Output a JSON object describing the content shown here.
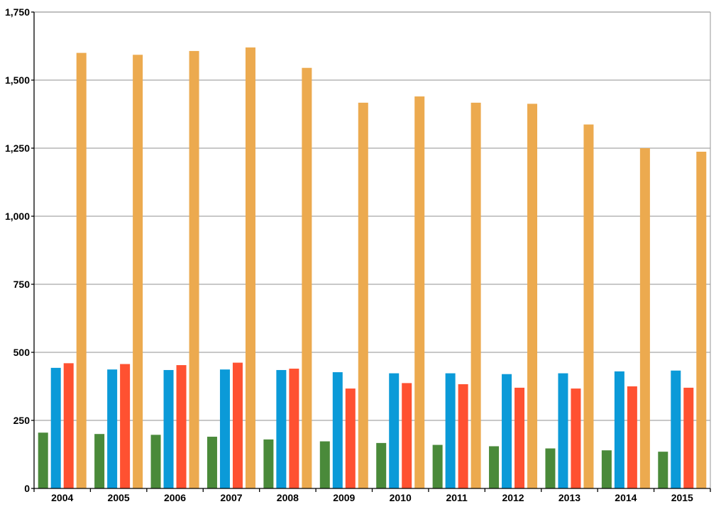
{
  "colors": {
    "series_1": "#4a8a3a",
    "series_2": "#0b9ad8",
    "series_3": "#ff5131",
    "series_4": "#ecaa4f",
    "grid": "#a6a6a6",
    "axis": "#000000",
    "background": "#ffffff"
  },
  "chart_data": {
    "type": "bar",
    "title": "",
    "xlabel": "",
    "ylabel": "",
    "categories": [
      "2004",
      "2005",
      "2006",
      "2007",
      "2008",
      "2009",
      "2010",
      "2011",
      "2012",
      "2013",
      "2014",
      "2015"
    ],
    "series": [
      {
        "color": "#4a8a3a",
        "values": [
          205,
          200,
          197,
          190,
          180,
          173,
          167,
          160,
          155,
          147,
          140,
          135
        ]
      },
      {
        "color": "#0b9ad8",
        "values": [
          443,
          437,
          435,
          437,
          435,
          427,
          423,
          423,
          420,
          423,
          430,
          433
        ]
      },
      {
        "color": "#ff5131",
        "values": [
          460,
          457,
          453,
          462,
          440,
          367,
          387,
          383,
          370,
          367,
          375,
          370
        ]
      },
      {
        "color": "#ecaa4f",
        "values": [
          1600,
          1593,
          1607,
          1620,
          1545,
          1417,
          1440,
          1417,
          1413,
          1337,
          1250,
          1237
        ]
      }
    ],
    "ylim": [
      0,
      1750
    ],
    "yticks": [
      0,
      250,
      500,
      750,
      1000,
      1250,
      1500,
      1750
    ],
    "ytick_labels": [
      "0",
      "250",
      "500",
      "750",
      "1,000",
      "1,250",
      "1,500",
      "1,750"
    ],
    "grid": true,
    "legend": "none"
  }
}
